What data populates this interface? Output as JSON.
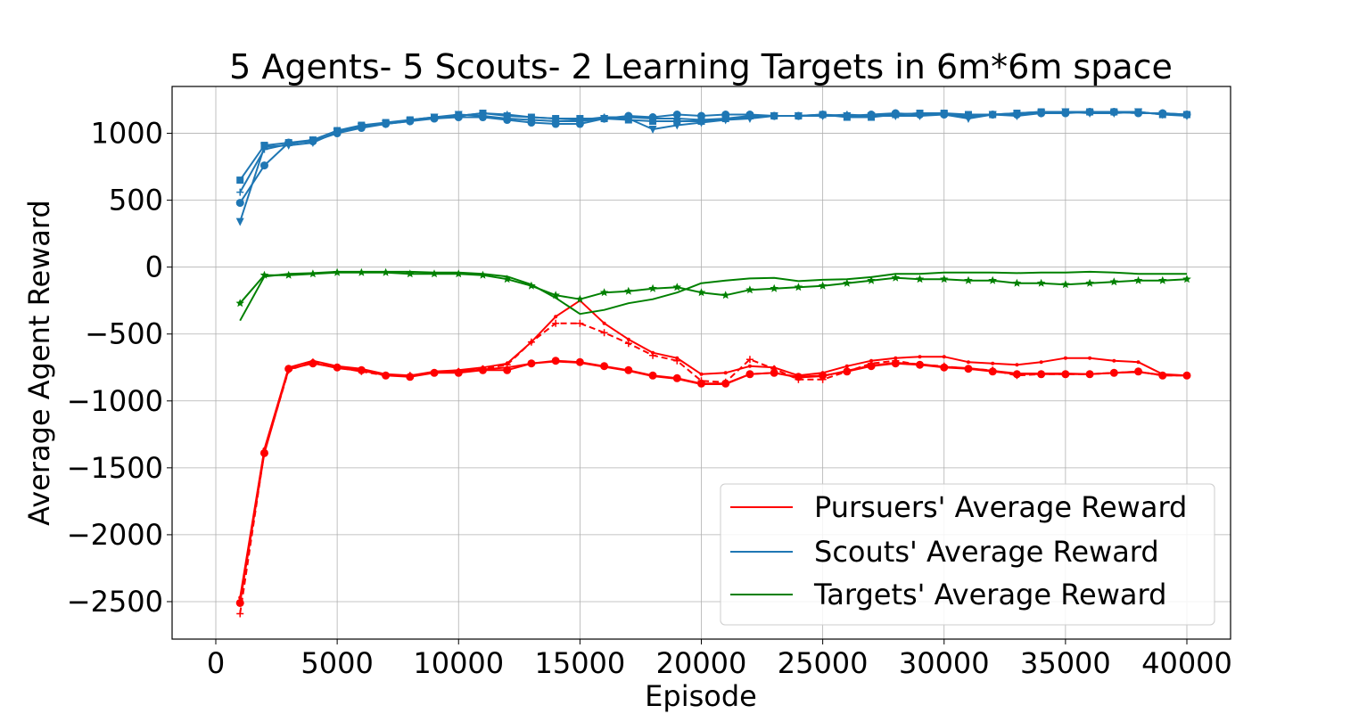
{
  "chart_data": {
    "type": "line",
    "title": "5 Agents- 5 Scouts- 2 Learning Targets in 6m*6m space",
    "xlabel": "Episode",
    "ylabel": "Average Agent Reward",
    "xlim": [
      -1800,
      41800
    ],
    "ylim": [
      -2780,
      1350
    ],
    "xticks": [
      0,
      5000,
      10000,
      15000,
      20000,
      25000,
      30000,
      35000,
      40000
    ],
    "xtick_labels": [
      "0",
      "5000",
      "10000",
      "15000",
      "20000",
      "25000",
      "30000",
      "35000",
      "40000"
    ],
    "yticks": [
      -2500,
      -2000,
      -1500,
      -1000,
      -500,
      0,
      500,
      1000
    ],
    "ytick_labels": [
      "−2500",
      "−2000",
      "−1500",
      "−1000",
      "−500",
      "0",
      "500",
      "1000"
    ],
    "grid": true,
    "legend_position": "lower-right",
    "legend": [
      {
        "label": "Pursuers' Average Reward",
        "color": "#ff0000"
      },
      {
        "label": "Scouts' Average Reward",
        "color": "#1f77b4"
      },
      {
        "label": "Targets' Average Reward",
        "color": "#008000"
      }
    ],
    "x": [
      1000,
      2000,
      3000,
      4000,
      5000,
      6000,
      7000,
      8000,
      9000,
      10000,
      11000,
      12000,
      13000,
      14000,
      15000,
      16000,
      17000,
      18000,
      19000,
      20000,
      21000,
      22000,
      23000,
      24000,
      25000,
      26000,
      27000,
      28000,
      29000,
      30000,
      31000,
      32000,
      33000,
      34000,
      35000,
      36000,
      37000,
      38000,
      39000,
      40000
    ],
    "series": [
      {
        "group": "pursuers",
        "color": "#ff0000",
        "marker": "circle",
        "dashed": false,
        "values": [
          -2510,
          -1390,
          -760,
          -720,
          -750,
          -770,
          -810,
          -820,
          -790,
          -790,
          -770,
          -770,
          -720,
          -700,
          -710,
          -740,
          -770,
          -810,
          -830,
          -870,
          -870,
          -800,
          -790,
          -820,
          -810,
          -780,
          -740,
          -720,
          -730,
          -750,
          -760,
          -780,
          -800,
          -800,
          -800,
          -800,
          -790,
          -780,
          -810,
          -810
        ]
      },
      {
        "group": "pursuers",
        "color": "#ff0000",
        "marker": "dot",
        "dashed": false,
        "values": [
          -2470,
          -1360,
          -750,
          -700,
          -740,
          -760,
          -800,
          -810,
          -780,
          -770,
          -750,
          -720,
          -560,
          -370,
          -250,
          -420,
          -540,
          -640,
          -680,
          -800,
          -790,
          -740,
          -750,
          -810,
          -790,
          -740,
          -700,
          -680,
          -670,
          -670,
          -710,
          -720,
          -730,
          -710,
          -680,
          -680,
          -700,
          -710,
          -800,
          -810
        ]
      },
      {
        "group": "pursuers",
        "color": "#ff0000",
        "marker": "plus",
        "dashed": true,
        "values": [
          -2590,
          -1380,
          -770,
          -710,
          -750,
          -780,
          -810,
          -810,
          -790,
          -780,
          -760,
          -730,
          -560,
          -420,
          -420,
          -490,
          -570,
          -660,
          -700,
          -850,
          -860,
          -690,
          -760,
          -840,
          -840,
          -780,
          -720,
          -700,
          -730,
          -740,
          -760,
          -770,
          -810,
          -800,
          -800,
          -800,
          -790,
          -780,
          -810,
          -810
        ]
      },
      {
        "group": "pursuers",
        "color": "#ff0000",
        "marker": "none",
        "dashed": false,
        "values": [
          -2490,
          -1370,
          -765,
          -715,
          -755,
          -775,
          -805,
          -815,
          -785,
          -780,
          -765,
          -750,
          -720,
          -705,
          -715,
          -745,
          -775,
          -815,
          -835,
          -875,
          -875,
          -800,
          -790,
          -825,
          -815,
          -775,
          -735,
          -715,
          -725,
          -745,
          -755,
          -775,
          -795,
          -795,
          -795,
          -800,
          -790,
          -785,
          -805,
          -810
        ]
      },
      {
        "group": "scouts",
        "color": "#1f77b4",
        "marker": "circle",
        "dashed": false,
        "values": [
          480,
          760,
          930,
          940,
          1000,
          1040,
          1070,
          1090,
          1110,
          1120,
          1120,
          1100,
          1080,
          1070,
          1070,
          1110,
          1130,
          1120,
          1140,
          1130,
          1140,
          1140,
          1130,
          1130,
          1140,
          1130,
          1140,
          1150,
          1140,
          1140,
          1130,
          1140,
          1140,
          1150,
          1150,
          1160,
          1160,
          1150,
          1150,
          1140
        ]
      },
      {
        "group": "scouts",
        "color": "#1f77b4",
        "marker": "triangle-down",
        "dashed": false,
        "values": [
          340,
          900,
          910,
          930,
          1010,
          1050,
          1070,
          1090,
          1120,
          1140,
          1130,
          1110,
          1100,
          1090,
          1090,
          1110,
          1110,
          1030,
          1060,
          1080,
          1100,
          1110,
          1130,
          1130,
          1130,
          1130,
          1130,
          1130,
          1130,
          1140,
          1110,
          1140,
          1130,
          1150,
          1160,
          1150,
          1150,
          1160,
          1140,
          1130
        ]
      },
      {
        "group": "scouts",
        "color": "#1f77b4",
        "marker": "square",
        "dashed": false,
        "values": [
          650,
          910,
          930,
          950,
          1020,
          1060,
          1080,
          1100,
          1120,
          1130,
          1150,
          1130,
          1120,
          1110,
          1110,
          1110,
          1100,
          1090,
          1090,
          1090,
          1110,
          1130,
          1130,
          1130,
          1140,
          1120,
          1120,
          1140,
          1150,
          1150,
          1140,
          1140,
          1150,
          1160,
          1160,
          1160,
          1160,
          1160,
          1140,
          1140
        ]
      },
      {
        "group": "scouts",
        "color": "#1f77b4",
        "marker": "plus",
        "dashed": false,
        "values": [
          560,
          880,
          920,
          950,
          1020,
          1050,
          1070,
          1100,
          1120,
          1130,
          1150,
          1140,
          1120,
          1110,
          1100,
          1120,
          1120,
          1110,
          1110,
          1100,
          1110,
          1120,
          1130,
          1130,
          1130,
          1140,
          1130,
          1140,
          1150,
          1150,
          1120,
          1140,
          1150,
          1160,
          1160,
          1160,
          1160,
          1150,
          1150,
          1140
        ]
      },
      {
        "group": "targets",
        "color": "#008000",
        "marker": "star",
        "dashed": false,
        "values": [
          -270,
          -60,
          -60,
          -50,
          -40,
          -40,
          -40,
          -50,
          -50,
          -50,
          -60,
          -90,
          -140,
          -210,
          -240,
          -190,
          -180,
          -160,
          -150,
          -190,
          -210,
          -170,
          -160,
          -150,
          -140,
          -120,
          -100,
          -80,
          -90,
          -90,
          -100,
          -100,
          -120,
          -120,
          -130,
          -120,
          -110,
          -100,
          -100,
          -90
        ]
      },
      {
        "group": "targets",
        "color": "#008000",
        "marker": "none",
        "dashed": false,
        "values": [
          -400,
          -70,
          -50,
          -45,
          -35,
          -35,
          -35,
          -35,
          -40,
          -40,
          -50,
          -70,
          -130,
          -230,
          -350,
          -320,
          -270,
          -240,
          -190,
          -120,
          -100,
          -85,
          -80,
          -105,
          -95,
          -90,
          -75,
          -50,
          -50,
          -40,
          -40,
          -40,
          -45,
          -40,
          -40,
          -35,
          -40,
          -50,
          -50,
          -50
        ]
      }
    ]
  }
}
